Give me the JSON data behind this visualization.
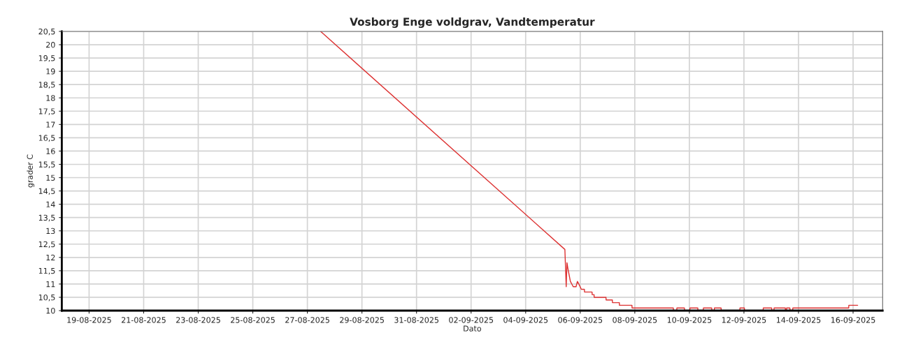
{
  "chart_data": {
    "type": "line",
    "title": "Vosborg Enge voldgrav, Vandtemperatur",
    "xlabel": "Dato",
    "ylabel": "grader C",
    "series": [
      {
        "color": "#dd3333",
        "x": [
          "2025-08-27T11:40",
          "2025-09-05T10:30",
          "2025-09-05T11:40",
          "2025-09-05T12:20",
          "2025-09-05T13:05",
          "2025-09-05T15:20",
          "2025-09-05T17:50",
          "2025-09-05T20:20",
          "2025-09-05T21:30",
          "2025-09-05T22:45",
          "2025-09-06T01:00",
          "2025-09-06T03:40",
          "2025-09-06T03:45",
          "2025-09-06T10:25",
          "2025-09-06T10:30",
          "2025-09-06T12:10",
          "2025-09-06T12:15",
          "2025-09-06T22:40",
          "2025-09-06T22:45",
          "2025-09-07T04:15",
          "2025-09-07T04:20",
          "2025-09-07T10:25",
          "2025-09-07T10:30",
          "2025-09-07T21:30",
          "2025-09-07T21:35",
          "2025-09-09T09:55",
          "2025-09-09T10:00",
          "2025-09-09T12:55",
          "2025-09-09T13:00",
          "2025-09-09T19:40",
          "2025-09-09T19:45",
          "2025-09-10T00:25",
          "2025-09-10T00:30",
          "2025-09-10T07:25",
          "2025-09-10T07:30",
          "2025-09-10T12:15",
          "2025-09-10T12:20",
          "2025-09-10T19:40",
          "2025-09-10T19:45",
          "2025-09-10T21:55",
          "2025-09-10T22:00",
          "2025-09-11T03:55",
          "2025-09-11T04:00",
          "2025-09-11T20:25",
          "2025-09-11T20:30",
          "2025-09-12T00:25",
          "2025-09-12T00:30",
          "2025-09-12T16:55",
          "2025-09-12T17:00",
          "2025-09-13T00:25",
          "2025-09-13T00:30",
          "2025-09-13T02:25",
          "2025-09-13T02:30",
          "2025-09-13T12:25",
          "2025-09-13T12:30",
          "2025-09-13T13:25",
          "2025-09-13T13:30",
          "2025-09-13T16:25",
          "2025-09-13T16:30",
          "2025-09-13T18:55",
          "2025-09-13T19:00",
          "2025-09-15T20:10",
          "2025-09-15T20:15",
          "2025-09-16T04:00"
        ],
        "values": [
          20.5,
          12.3,
          10.9,
          11.8,
          11.6,
          11.1,
          10.9,
          10.9,
          11.1,
          11.0,
          10.8,
          10.8,
          10.7,
          10.7,
          10.6,
          10.6,
          10.5,
          10.5,
          10.4,
          10.4,
          10.3,
          10.3,
          10.2,
          10.2,
          10.1,
          10.1,
          10.0,
          10.0,
          10.1,
          10.1,
          10.0,
          10.0,
          10.1,
          10.1,
          10.0,
          10.0,
          10.1,
          10.1,
          10.0,
          10.0,
          10.1,
          10.1,
          10.0,
          10.0,
          10.1,
          10.1,
          10.0,
          10.0,
          10.1,
          10.1,
          10.0,
          10.0,
          10.1,
          10.1,
          10.0,
          10.0,
          10.1,
          10.1,
          10.0,
          10.0,
          10.1,
          10.1,
          10.2,
          10.2
        ]
      }
    ],
    "xlim": [
      "2025-08-18",
      "2025-09-17T02:00"
    ],
    "xticks": [
      {
        "value": "2025-08-19",
        "label": "19-08-2025"
      },
      {
        "value": "2025-08-21",
        "label": "21-08-2025"
      },
      {
        "value": "2025-08-23",
        "label": "23-08-2025"
      },
      {
        "value": "2025-08-25",
        "label": "25-08-2025"
      },
      {
        "value": "2025-08-27",
        "label": "27-08-2025"
      },
      {
        "value": "2025-08-29",
        "label": "29-08-2025"
      },
      {
        "value": "2025-08-31",
        "label": "31-08-2025"
      },
      {
        "value": "2025-09-02",
        "label": "02-09-2025"
      },
      {
        "value": "2025-09-04",
        "label": "04-09-2025"
      },
      {
        "value": "2025-09-06",
        "label": "06-09-2025"
      },
      {
        "value": "2025-09-08",
        "label": "08-09-2025"
      },
      {
        "value": "2025-09-10",
        "label": "10-09-2025"
      },
      {
        "value": "2025-09-12",
        "label": "12-09-2025"
      },
      {
        "value": "2025-09-14",
        "label": "14-09-2025"
      },
      {
        "value": "2025-09-16",
        "label": "16-09-2025"
      }
    ],
    "ylim": [
      10,
      20.5
    ],
    "yticks": [
      10,
      {
        "value": 10.5,
        "label": "10,5"
      },
      11,
      {
        "value": 11.5,
        "label": "11,5"
      },
      12,
      {
        "value": 12.5,
        "label": "12,5"
      },
      13,
      {
        "value": 13.5,
        "label": "13,5"
      },
      14,
      {
        "value": 14.5,
        "label": "14,5"
      },
      15,
      {
        "value": 15.5,
        "label": "15,5"
      },
      16,
      {
        "value": 16.5,
        "label": "16,5"
      },
      17,
      {
        "value": 17.5,
        "label": "17,5"
      },
      18,
      {
        "value": 18.5,
        "label": "18,5"
      },
      19,
      {
        "value": 19.5,
        "label": "19,5"
      },
      20,
      {
        "value": 20.5,
        "label": "20,5"
      }
    ],
    "grid": true
  }
}
